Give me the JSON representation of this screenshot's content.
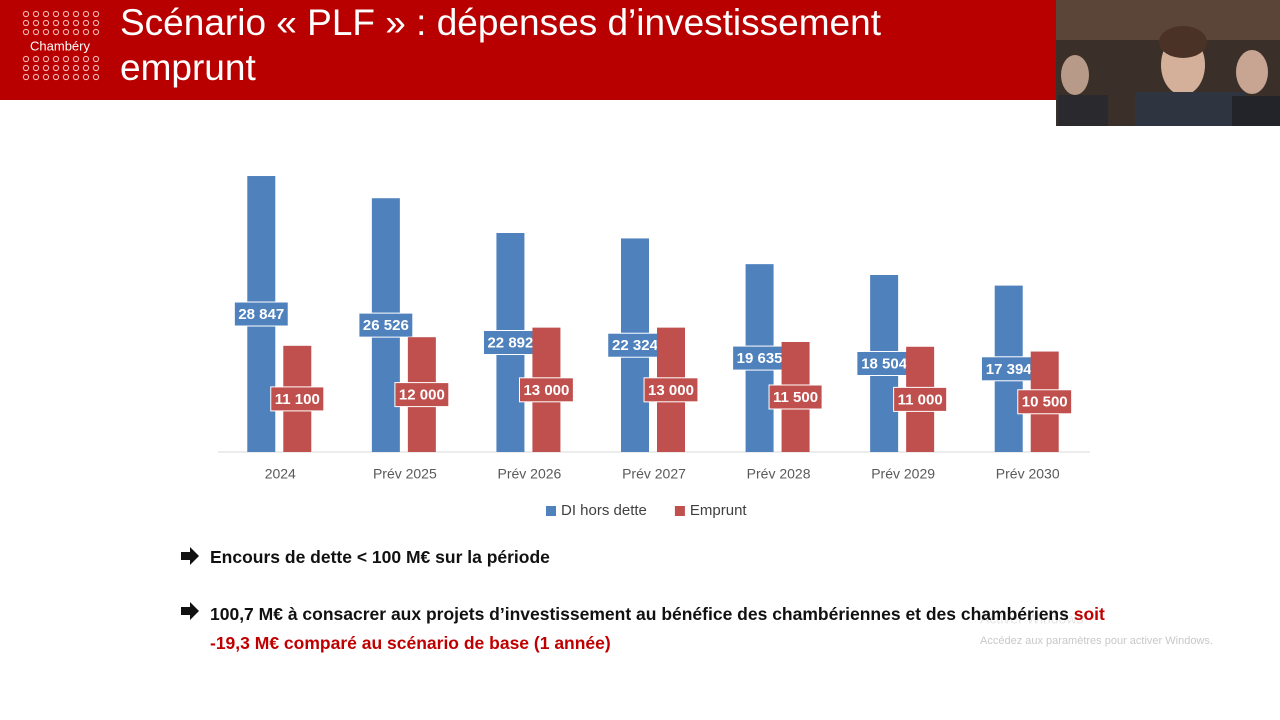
{
  "header": {
    "logo": "Chambéry",
    "title_lines": [
      "Scénario « PLF » : dépenses d’investissement",
      "emprunt"
    ]
  },
  "chart_data": {
    "type": "bar",
    "categories": [
      "2024",
      "Prév 2025",
      "Prév 2026",
      "Prév 2027",
      "Prév 2028",
      "Prév 2029",
      "Prév 2030"
    ],
    "series": [
      {
        "name": "DI hors dette",
        "color": "#4f81bd",
        "values": [
          28847,
          26526,
          22892,
          22324,
          19635,
          18504,
          17394
        ],
        "value_labels": [
          "28 847",
          "26 526",
          "22 892",
          "22 324",
          "19 635",
          "18 504",
          "17 394"
        ]
      },
      {
        "name": "Emprunt",
        "color": "#c0504d",
        "values": [
          11100,
          12000,
          13000,
          13000,
          11500,
          11000,
          10500
        ],
        "value_labels": [
          "11 100",
          "12 000",
          "13 000",
          "13 000",
          "11 500",
          "11 000",
          "10 500"
        ]
      }
    ],
    "ylim": [
      0,
      30000
    ],
    "legend": "bottom"
  },
  "bullets": [
    {
      "text": "Encours de dette < 100 M€ sur la période"
    },
    {
      "text": "100,7 M€ à consacrer aux projets d’investissement au bénéfice des chambériennes et des chambériens",
      "highlight": "soit -19,3 M€ comparé au scénario de base (1 année)"
    }
  ],
  "watermark": {
    "title": "Activer Windows",
    "text": "Accédez aux paramètres pour activer Windows."
  }
}
